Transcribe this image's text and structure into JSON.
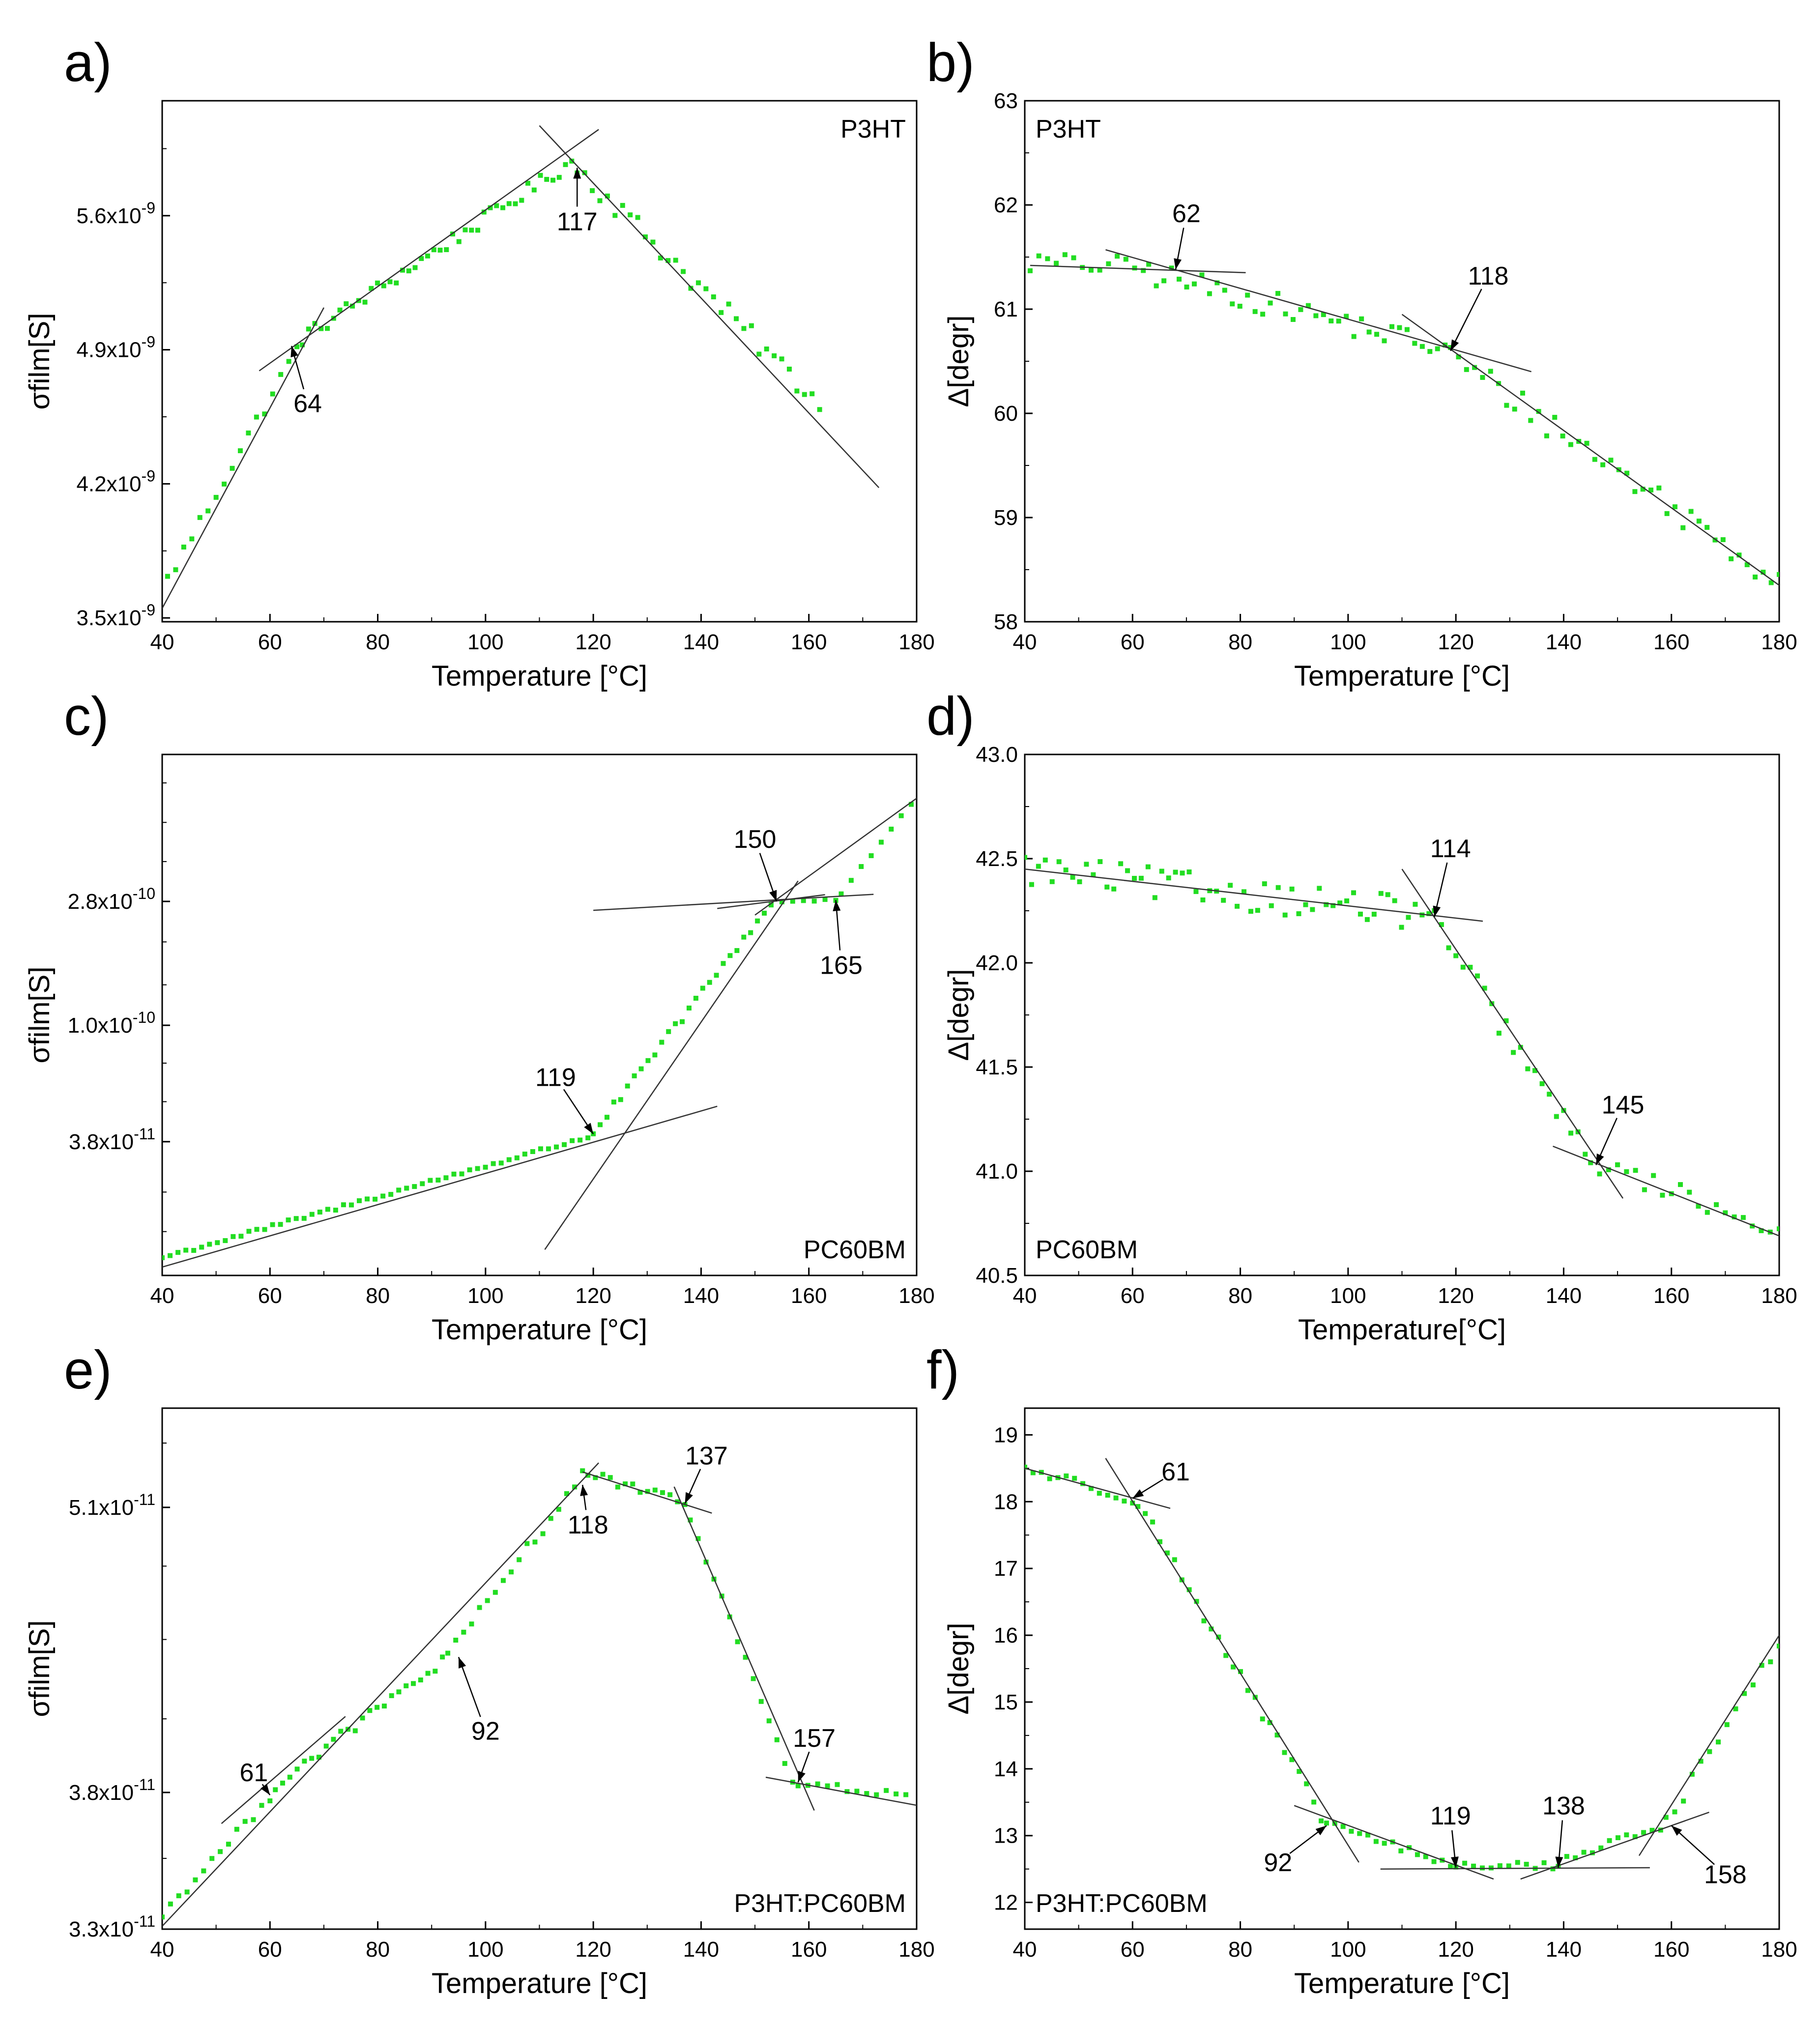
{
  "figure": {
    "dot_color": "#22dd22",
    "line_color": "#333333"
  },
  "chart_data": [
    {
      "id": "a",
      "panel_label": "a)",
      "type": "scatter",
      "sample": "P3HT",
      "xlabel": "Temperature [°C]",
      "ylabel": "σfilm[S]",
      "xlim": [
        40,
        180
      ],
      "ylim": [
        3.48e-09,
        6.2e-09
      ],
      "yscale": "linear",
      "xticks": [
        40,
        60,
        80,
        100,
        120,
        140,
        160,
        180
      ],
      "yticks": [
        {
          "v": 3.5e-09,
          "m": "3.5x10",
          "e": "-9"
        },
        {
          "v": 4.2e-09,
          "m": "4.2x10",
          "e": "-9"
        },
        {
          "v": 4.9e-09,
          "m": "4.9x10",
          "e": "-9"
        },
        {
          "v": 5.6e-09,
          "m": "5.6x10",
          "e": "-9"
        }
      ],
      "minor_y": [
        3.85e-09,
        4.55e-09,
        5.25e-09,
        5.95e-09
      ],
      "fit_lines": [
        {
          "x": [
            40,
            70
          ],
          "y": [
            3.55e-09,
            5.12e-09
          ]
        },
        {
          "x": [
            58,
            121
          ],
          "y": [
            4.79e-09,
            6.05e-09
          ]
        },
        {
          "x": [
            110,
            173
          ],
          "y": [
            6.07e-09,
            4.18e-09
          ]
        }
      ],
      "annotations": [
        {
          "label": "64",
          "x": 64,
          "y": 4.92e-09,
          "tx": 67,
          "ty": 4.62e-09
        },
        {
          "label": "117",
          "x": 117,
          "y": 5.85e-09,
          "tx": 117,
          "ty": 5.57e-09
        }
      ],
      "segments": [
        {
          "x0": 41,
          "x1": 65,
          "y0": 3.7e-09,
          "y1": 4.9e-09,
          "n": 17,
          "noise": 4e-11
        },
        {
          "x0": 66,
          "x1": 116,
          "y0": 4.96e-09,
          "y1": 5.88e-09,
          "n": 44,
          "noise": 4e-11
        },
        {
          "x0": 117,
          "x1": 162,
          "y0": 5.85e-09,
          "y1": 4.62e-09,
          "n": 33,
          "noise": 6e-11
        }
      ]
    },
    {
      "id": "b",
      "panel_label": "b)",
      "type": "scatter",
      "sample": "P3HT",
      "xlabel": "Temperature [°C]",
      "ylabel": "Δ[degr]",
      "xlim": [
        40,
        180
      ],
      "ylim": [
        58,
        63
      ],
      "yscale": "linear",
      "xticks": [
        40,
        60,
        80,
        100,
        120,
        140,
        160,
        180
      ],
      "yticks": [
        {
          "v": 58,
          "t": "58"
        },
        {
          "v": 59,
          "t": "59"
        },
        {
          "v": 60,
          "t": "60"
        },
        {
          "v": 61,
          "t": "61"
        },
        {
          "v": 62,
          "t": "62"
        },
        {
          "v": 63,
          "t": "63"
        }
      ],
      "minor_y": [
        58.5,
        59.5,
        60.5,
        61.5,
        62.5
      ],
      "fit_lines": [
        {
          "x": [
            41,
            81
          ],
          "y": [
            61.42,
            61.35
          ]
        },
        {
          "x": [
            55,
            134
          ],
          "y": [
            61.57,
            60.4
          ]
        },
        {
          "x": [
            110,
            180
          ],
          "y": [
            60.95,
            58.35
          ]
        }
      ],
      "annotations": [
        {
          "label": "62",
          "x": 68,
          "y": 61.38,
          "tx": 70,
          "ty": 61.92
        },
        {
          "label": "118",
          "x": 119,
          "y": 60.6,
          "tx": 126,
          "ty": 61.32
        }
      ],
      "segments": [
        {
          "x0": 41,
          "x1": 62,
          "y0": 61.45,
          "y1": 61.4,
          "n": 14,
          "noise": 0.1
        },
        {
          "x0": 63,
          "x1": 118,
          "y0": 61.35,
          "y1": 60.62,
          "n": 40,
          "noise": 0.12
        },
        {
          "x0": 119,
          "x1": 180,
          "y0": 60.55,
          "y1": 58.4,
          "n": 42,
          "noise": 0.14
        }
      ]
    },
    {
      "id": "c",
      "panel_label": "c)",
      "type": "scatter",
      "sample": "PC60BM",
      "xlabel": "Temperature [°C]",
      "ylabel": "σfilm[S]",
      "xlim": [
        40,
        180
      ],
      "ylim": [
        1.25e-11,
        9.5e-10
      ],
      "yscale": "log",
      "xticks": [
        40,
        60,
        80,
        100,
        120,
        140,
        160,
        180
      ],
      "yticks": [
        {
          "v": 3.8e-11,
          "m": "3.8x10",
          "e": "-11"
        },
        {
          "v": 1e-10,
          "m": "1.0x10",
          "e": "-10"
        },
        {
          "v": 2.8e-10,
          "m": "2.8x10",
          "e": "-10"
        }
      ],
      "minor_y": [
        1.8e-11,
        2.5e-11,
        5.3e-11,
        7.3e-11,
        1.4e-10,
        2e-10,
        3.9e-10,
        5.4e-10,
        7.5e-10
      ],
      "fit_lines": [
        {
          "x": [
            40,
            143
          ],
          "y": [
            1.34e-11,
            5.1e-11
          ]
        },
        {
          "x": [
            111,
            158
          ],
          "y": [
            1.55e-11,
            3.32e-10
          ]
        },
        {
          "x": [
            143,
            163
          ],
          "y": [
            2.64e-10,
            2.96e-10
          ]
        },
        {
          "x": [
            120,
            172
          ],
          "y": [
            2.6e-10,
            2.97e-10
          ]
        },
        {
          "x": [
            150,
            180
          ],
          "y": [
            2.5e-10,
            6.6e-10
          ]
        }
      ],
      "annotations": [
        {
          "label": "119",
          "x": 120,
          "y": 4.05e-11,
          "tx": 113,
          "ty": 6.5e-11
        },
        {
          "label": "150",
          "x": 154,
          "y": 2.8e-10,
          "tx": 150,
          "ty": 4.7e-10
        },
        {
          "label": "165",
          "x": 165,
          "y": 2.83e-10,
          "tx": 166,
          "ty": 1.65e-10
        }
      ],
      "segments": [
        {
          "x0": 40,
          "x1": 119,
          "y0": 1.45e-11,
          "y1": 3.95e-11,
          "n": 55,
          "noise": 0.015
        },
        {
          "x0": 120,
          "x1": 153,
          "y0": 4.1e-11,
          "y1": 2.75e-10,
          "n": 27,
          "noise": 0.03
        },
        {
          "x0": 155,
          "x1": 165,
          "y0": 2.79e-10,
          "y1": 2.85e-10,
          "n": 6,
          "noise": 0.01
        },
        {
          "x0": 166,
          "x1": 179,
          "y0": 3e-10,
          "y1": 6.3e-10,
          "n": 8,
          "noise": 0.015
        }
      ]
    },
    {
      "id": "d",
      "panel_label": "d)",
      "type": "scatter",
      "sample": "PC60BM",
      "xlabel": "Temperature[°C]",
      "ylabel": "Δ[degr]",
      "xlim": [
        40,
        180
      ],
      "ylim": [
        40.5,
        43.0
      ],
      "yscale": "linear",
      "xticks": [
        40,
        60,
        80,
        100,
        120,
        140,
        160,
        180
      ],
      "yticks": [
        {
          "v": 40.5,
          "t": "40.5"
        },
        {
          "v": 41.0,
          "t": "41.0"
        },
        {
          "v": 41.5,
          "t": "41.5"
        },
        {
          "v": 42.0,
          "t": "42.0"
        },
        {
          "v": 42.5,
          "t": "42.5"
        },
        {
          "v": 43.0,
          "t": "43.0"
        }
      ],
      "minor_y": [
        40.75,
        41.25,
        41.75,
        42.25,
        42.75
      ],
      "fit_lines": [
        {
          "x": [
            40,
            125
          ],
          "y": [
            42.45,
            42.2
          ]
        },
        {
          "x": [
            110,
            151
          ],
          "y": [
            42.45,
            40.87
          ]
        },
        {
          "x": [
            138,
            180
          ],
          "y": [
            41.12,
            40.69
          ]
        }
      ],
      "annotations": [
        {
          "label": "114",
          "x": 116,
          "y": 42.22,
          "tx": 119,
          "ty": 42.55
        },
        {
          "label": "145",
          "x": 146,
          "y": 41.03,
          "tx": 151,
          "ty": 41.32
        }
      ],
      "segments": [
        {
          "x0": 40,
          "x1": 115,
          "y0": 42.45,
          "y1": 42.23,
          "n": 60,
          "noise": 0.08
        },
        {
          "x0": 116,
          "x1": 144,
          "y0": 42.2,
          "y1": 41.08,
          "n": 22,
          "noise": 0.06
        },
        {
          "x0": 145,
          "x1": 180,
          "y0": 41.05,
          "y1": 40.72,
          "n": 22,
          "noise": 0.05
        }
      ]
    },
    {
      "id": "e",
      "panel_label": "e)",
      "type": "scatter",
      "sample": "P3HT:PC60BM",
      "xlabel": "Temperature [°C]",
      "ylabel": "σfilm[S]",
      "xlim": [
        40,
        180
      ],
      "ylim": [
        3.3e-11,
        5.65e-11
      ],
      "yscale": "log",
      "xticks": [
        40,
        60,
        80,
        100,
        120,
        140,
        160,
        180
      ],
      "yticks": [
        {
          "v": 3.3e-11,
          "m": "3.3x10",
          "e": "-11"
        },
        {
          "v": 3.8e-11,
          "m": "3.8x10",
          "e": "-11"
        },
        {
          "v": 5.1e-11,
          "m": "5.1x10",
          "e": "-11"
        }
      ],
      "minor_y": [
        3.55e-11,
        4.1e-11,
        4.45e-11,
        4.8e-11,
        5.45e-11
      ],
      "fit_lines": [
        {
          "x": [
            51,
            74
          ],
          "y": [
            3.68e-11,
            4.11e-11
          ]
        },
        {
          "x": [
            40,
            121
          ],
          "y": [
            3.31e-11,
            5.34e-11
          ]
        },
        {
          "x": [
            118,
            142
          ],
          "y": [
            5.29e-11,
            5.07e-11
          ]
        },
        {
          "x": [
            135,
            161
          ],
          "y": [
            5.21e-11,
            3.73e-11
          ]
        },
        {
          "x": [
            152,
            180
          ],
          "y": [
            3.86e-11,
            3.75e-11
          ]
        }
      ],
      "annotations": [
        {
          "label": "61",
          "x": 60,
          "y": 3.79e-11,
          "tx": 57,
          "ty": 3.88e-11
        },
        {
          "label": "92",
          "x": 95,
          "y": 4.37e-11,
          "tx": 100,
          "ty": 4.05e-11
        },
        {
          "label": "118",
          "x": 118,
          "y": 5.22e-11,
          "tx": 119,
          "ty": 5.01e-11
        },
        {
          "label": "137",
          "x": 137,
          "y": 5.12e-11,
          "tx": 141,
          "ty": 5.38e-11
        },
        {
          "label": "157",
          "x": 158,
          "y": 3.84e-11,
          "tx": 161,
          "ty": 4.02e-11
        }
      ],
      "segments": [
        {
          "x0": 40,
          "x1": 60,
          "y0": 3.35e-11,
          "y1": 3.78e-11,
          "n": 14,
          "noise": 0.004
        },
        {
          "x0": 61,
          "x1": 92,
          "y0": 3.83e-11,
          "y1": 4.35e-11,
          "n": 24,
          "noise": 0.005
        },
        {
          "x0": 93,
          "x1": 118,
          "y0": 4.37e-11,
          "y1": 5.28e-11,
          "n": 18,
          "noise": 0.006
        },
        {
          "x0": 119,
          "x1": 137,
          "y0": 5.28e-11,
          "y1": 5.12e-11,
          "n": 14,
          "noise": 0.004
        },
        {
          "x0": 138,
          "x1": 157,
          "y0": 5.05e-11,
          "y1": 3.84e-11,
          "n": 14,
          "noise": 0.004
        },
        {
          "x0": 158,
          "x1": 178,
          "y0": 3.84e-11,
          "y1": 3.78e-11,
          "n": 12,
          "noise": 0.005
        }
      ]
    },
    {
      "id": "f",
      "panel_label": "f)",
      "type": "scatter",
      "sample": "P3HT:PC60BM",
      "xlabel": "Temperature [°C]",
      "ylabel": "Δ[degr]",
      "xlim": [
        40,
        180
      ],
      "ylim": [
        11.6,
        19.4
      ],
      "yscale": "linear",
      "xticks": [
        40,
        60,
        80,
        100,
        120,
        140,
        160,
        180
      ],
      "yticks": [
        {
          "v": 12,
          "t": "12"
        },
        {
          "v": 13,
          "t": "13"
        },
        {
          "v": 14,
          "t": "14"
        },
        {
          "v": 15,
          "t": "15"
        },
        {
          "v": 16,
          "t": "16"
        },
        {
          "v": 17,
          "t": "17"
        },
        {
          "v": 18,
          "t": "18"
        },
        {
          "v": 19,
          "t": "19"
        }
      ],
      "minor_y": [
        12.5,
        13.5,
        14.5,
        15.5,
        16.5,
        17.5,
        18.5
      ],
      "fit_lines": [
        {
          "x": [
            40,
            67
          ],
          "y": [
            18.5,
            17.9
          ]
        },
        {
          "x": [
            55,
            102
          ],
          "y": [
            18.65,
            12.6
          ]
        },
        {
          "x": [
            90,
            127
          ],
          "y": [
            13.45,
            12.35
          ]
        },
        {
          "x": [
            106,
            156
          ],
          "y": [
            12.5,
            12.52
          ]
        },
        {
          "x": [
            132,
            167
          ],
          "y": [
            12.35,
            13.35
          ]
        },
        {
          "x": [
            154,
            180
          ],
          "y": [
            12.7,
            16.0
          ]
        }
      ],
      "annotations": [
        {
          "label": "61",
          "x": 60,
          "y": 18.05,
          "tx": 68,
          "ty": 18.45
        },
        {
          "label": "92",
          "x": 96,
          "y": 13.15,
          "tx": 87,
          "ty": 12.6
        },
        {
          "label": "119",
          "x": 120,
          "y": 12.52,
          "tx": 119,
          "ty": 13.3
        },
        {
          "label": "138",
          "x": 139,
          "y": 12.52,
          "tx": 140,
          "ty": 13.45
        },
        {
          "label": "158",
          "x": 160,
          "y": 13.15,
          "tx": 170,
          "ty": 12.42
        }
      ],
      "segments": [
        {
          "x0": 40,
          "x1": 60,
          "y0": 18.5,
          "y1": 18.05,
          "n": 14,
          "noise": 0.08
        },
        {
          "x0": 61,
          "x1": 95,
          "y0": 18.0,
          "y1": 13.3,
          "n": 26,
          "noise": 0.1
        },
        {
          "x0": 96,
          "x1": 119,
          "y0": 13.2,
          "y1": 12.55,
          "n": 16,
          "noise": 0.06
        },
        {
          "x0": 120,
          "x1": 138,
          "y0": 12.55,
          "y1": 12.55,
          "n": 12,
          "noise": 0.05
        },
        {
          "x0": 139,
          "x1": 158,
          "y0": 12.6,
          "y1": 13.15,
          "n": 13,
          "noise": 0.08
        },
        {
          "x0": 159,
          "x1": 180,
          "y0": 13.2,
          "y1": 15.9,
          "n": 14,
          "noise": 0.1
        }
      ]
    }
  ]
}
